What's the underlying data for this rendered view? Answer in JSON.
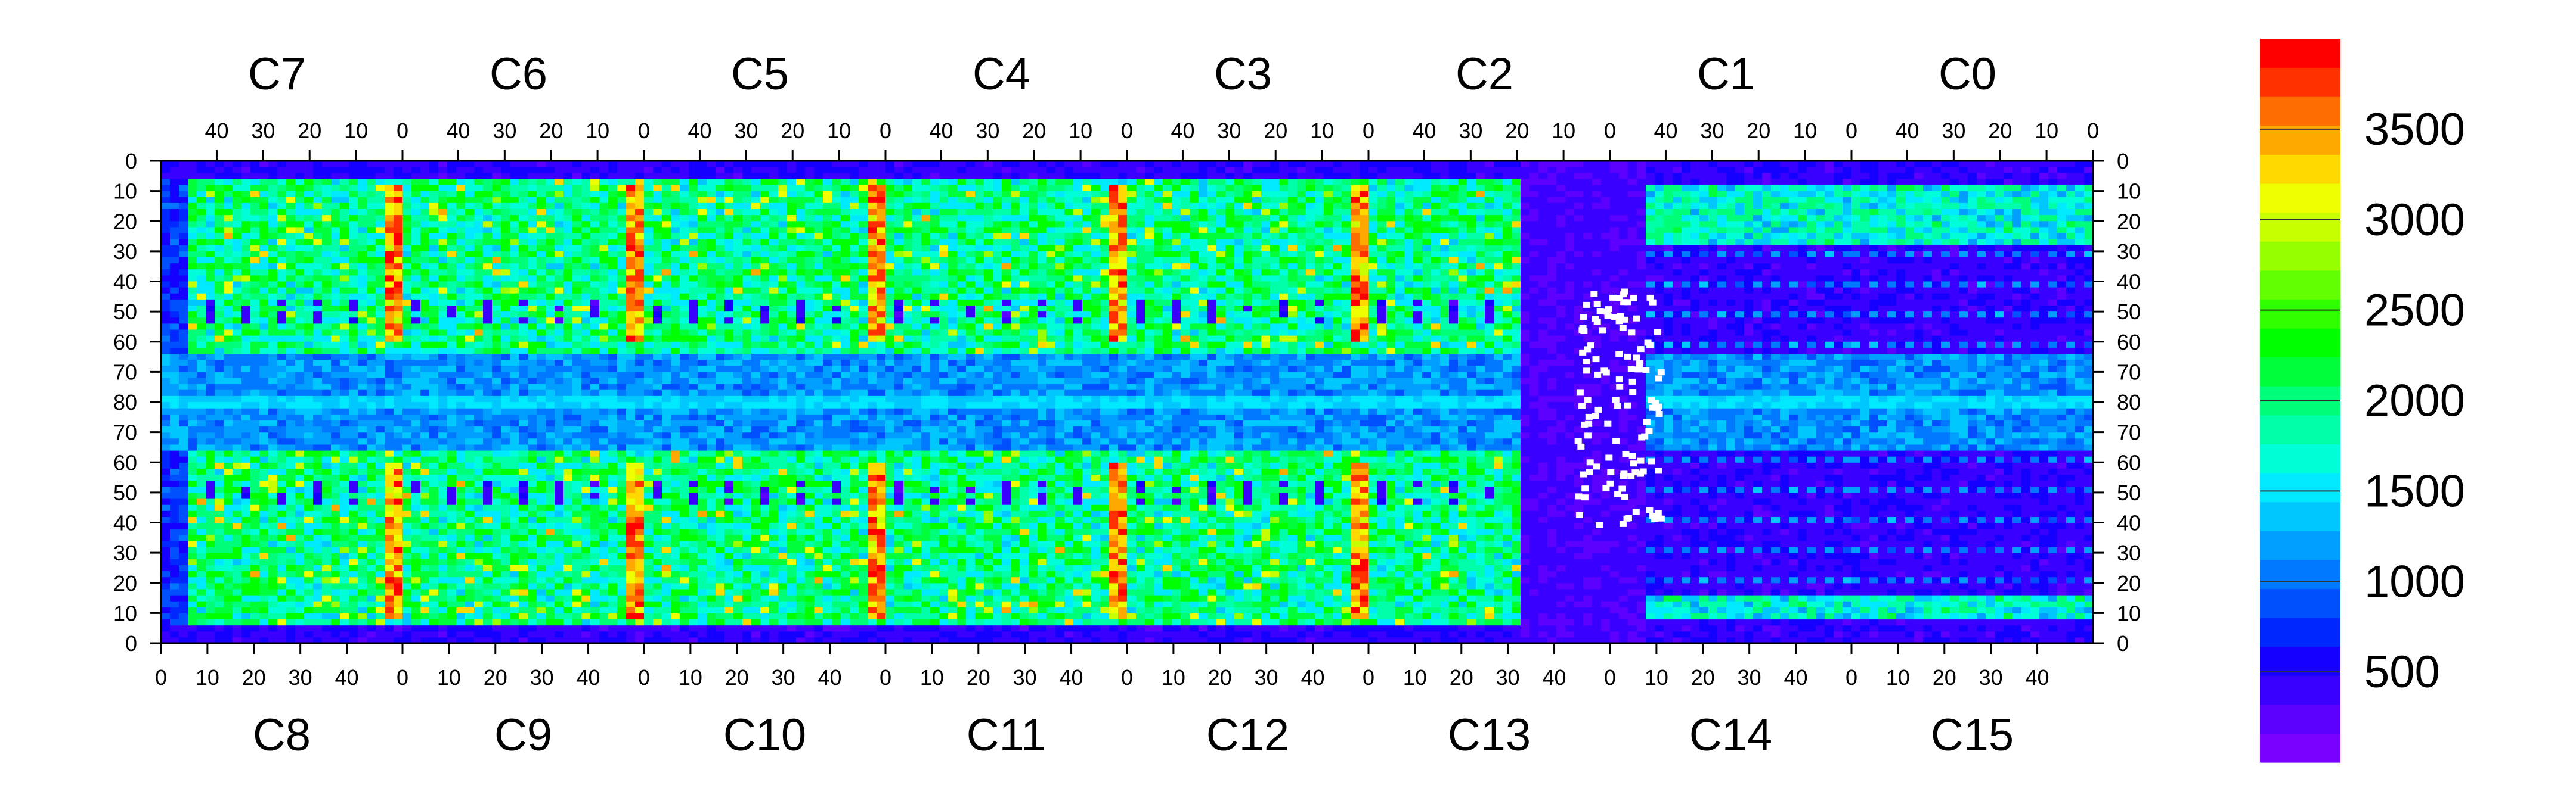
{
  "chart_data": {
    "type": "heatmap",
    "title": "",
    "xlabel": "",
    "ylabel": "",
    "top_chip_labels": [
      "C7",
      "C6",
      "C5",
      "C4",
      "C3",
      "C2",
      "C1",
      "C0"
    ],
    "bottom_chip_labels": [
      "C8",
      "C9",
      "C10",
      "C11",
      "C12",
      "C13",
      "C14",
      "C15"
    ],
    "chip_columns": 52,
    "chip_rows": 80,
    "top_axis_tick_labels": [
      "40",
      "30",
      "20",
      "10",
      "0"
    ],
    "top_axis_tick_values": [
      40,
      30,
      20,
      10,
      0
    ],
    "bottom_axis_tick_labels": [
      "0",
      "10",
      "20",
      "30",
      "40"
    ],
    "bottom_axis_tick_values": [
      0,
      10,
      20,
      30,
      40
    ],
    "y_tick_labels": [
      "0",
      "10",
      "20",
      "30",
      "40",
      "50",
      "60",
      "70",
      "80",
      "70",
      "60",
      "50",
      "40",
      "30",
      "20",
      "10",
      "0"
    ],
    "colorbar": {
      "range": [
        0,
        4000
      ],
      "tick_labels": [
        "500",
        "1000",
        "1500",
        "2000",
        "2500",
        "3000",
        "3500"
      ],
      "tick_values": [
        500,
        1000,
        1500,
        2000,
        2500,
        3000,
        3500
      ],
      "colors": [
        "#7a00ff",
        "#5c00ff",
        "#3a00ff",
        "#1500ff",
        "#0028ff",
        "#0050ff",
        "#0078ff",
        "#009eff",
        "#00c8ff",
        "#00eaff",
        "#00ffd8",
        "#00ffa8",
        "#00ff78",
        "#00ff3a",
        "#00ff00",
        "#30ff00",
        "#62ff00",
        "#98ff00",
        "#c8ff00",
        "#eeff00",
        "#ffd800",
        "#ffa800",
        "#ff6e00",
        "#ff3000",
        "#ff0000"
      ]
    },
    "regions": {
      "typical_background_level": 350,
      "active_level_range": [
        1400,
        2400
      ],
      "chip_edge_column_level_range": [
        3000,
        4000
      ],
      "no_data_region": "C13/C14 center, rows ~45-60 near middle (white)"
    }
  }
}
